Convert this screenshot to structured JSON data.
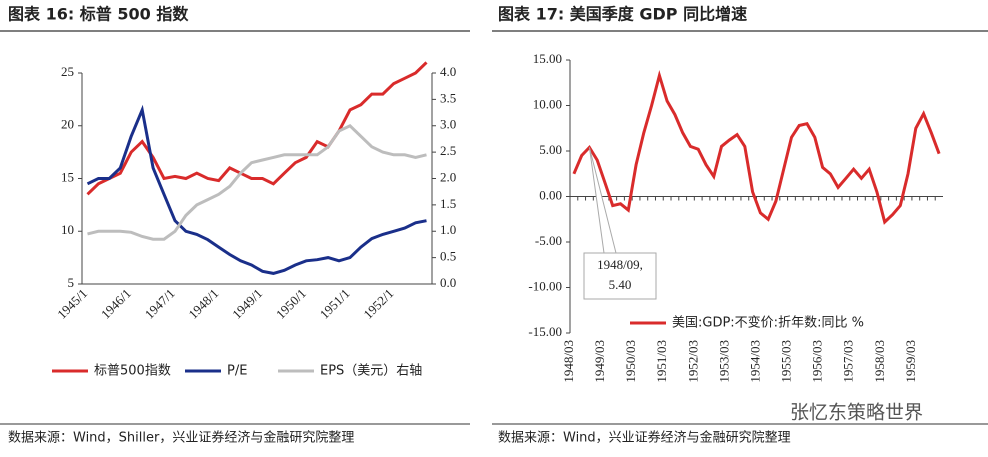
{
  "chart_data": [
    {
      "type": "line",
      "title": "图表 16:  标普 500 指数",
      "source": "数据来源：Wind，Shiller，兴业证券经济与金融研究院整理",
      "categories": [
        "1945/1",
        null,
        null,
        null,
        "1946/1",
        null,
        null,
        null,
        "1947/1",
        null,
        null,
        null,
        "1948/1",
        null,
        null,
        null,
        "1949/1",
        null,
        null,
        null,
        "1950/1",
        null,
        null,
        null,
        "1951/1",
        null,
        null,
        null,
        "1952/1",
        null,
        null,
        null
      ],
      "ylim": [
        5,
        25
      ],
      "yticks": [
        5,
        10,
        15,
        20,
        25
      ],
      "y2lim": [
        0,
        4
      ],
      "y2ticks": [
        {
          "value": 0,
          "label": "0.0"
        },
        {
          "value": 0.5,
          "label": "0.5"
        },
        {
          "value": 1,
          "label": "1.0"
        },
        {
          "value": 1.5,
          "label": "1.5"
        },
        {
          "value": 2,
          "label": "2.0"
        },
        {
          "value": 2.5,
          "label": "2.5"
        },
        {
          "value": 3,
          "label": "3.0"
        },
        {
          "value": 3.5,
          "label": "3.5"
        },
        {
          "value": 4,
          "label": "4.0"
        }
      ],
      "grid": false,
      "legend": "bottom",
      "series": [
        {
          "name": "标普500指数",
          "color": "#d92b2b",
          "values": [
            13.5,
            14.5,
            15,
            15.5,
            17.5,
            18.5,
            17,
            15,
            15.2,
            15,
            15.5,
            15,
            14.8,
            16,
            15.5,
            15,
            15,
            14.5,
            15.5,
            16.5,
            17,
            18.5,
            18,
            19.5,
            21.5,
            22,
            23,
            23,
            24,
            24.5,
            25,
            26
          ]
        },
        {
          "name": "P/E",
          "color": "#1a2f8a",
          "values": [
            14.5,
            15,
            15,
            16,
            19,
            21.5,
            16,
            13.5,
            11,
            10,
            9.7,
            9.2,
            8.5,
            7.8,
            7.2,
            6.8,
            6.2,
            6,
            6.3,
            6.8,
            7.2,
            7.3,
            7.5,
            7.2,
            7.5,
            8.5,
            9.3,
            9.7,
            10,
            10.3,
            10.8,
            11
          ]
        },
        {
          "name": "EPS（美元）右轴",
          "color": "#bdbdbd",
          "axis": "y2",
          "values": [
            0.95,
            1,
            1,
            1,
            0.98,
            0.9,
            0.85,
            0.85,
            1,
            1.3,
            1.5,
            1.6,
            1.7,
            1.85,
            2.1,
            2.3,
            2.35,
            2.4,
            2.45,
            2.45,
            2.45,
            2.45,
            2.6,
            2.9,
            3,
            2.8,
            2.6,
            2.5,
            2.45,
            2.45,
            2.4,
            2.45
          ]
        }
      ]
    },
    {
      "type": "line",
      "title": "图表 17:  美国季度 GDP 同比增速",
      "source": "数据来源：Wind，兴业证券经济与金融研究院整理",
      "categories": [
        "1948/03",
        null,
        null,
        null,
        "1949/03",
        null,
        null,
        null,
        "1950/03",
        null,
        null,
        null,
        "1951/03",
        null,
        null,
        null,
        "1952/03",
        null,
        null,
        null,
        "1953/03",
        null,
        null,
        null,
        "1954/03",
        null,
        null,
        null,
        "1955/03",
        null,
        null,
        null,
        "1956/03",
        null,
        null,
        null,
        "1957/03",
        null,
        null,
        null,
        "1958/03",
        null,
        null,
        null,
        "1959/03",
        null,
        null,
        null
      ],
      "ylim": [
        -15,
        15
      ],
      "yticks": [
        {
          "value": -15,
          "label": "-15.00"
        },
        {
          "value": -10,
          "label": "-10.00"
        },
        {
          "value": -5,
          "label": "-5.00"
        },
        {
          "value": 0,
          "label": "0.00"
        },
        {
          "value": 5,
          "label": "5.00"
        },
        {
          "value": 10,
          "label": "10.00"
        },
        {
          "value": 15,
          "label": "15.00"
        }
      ],
      "grid": false,
      "legend": "bottom",
      "annotation": [
        "1948/09,",
        "5.40"
      ],
      "series": [
        {
          "name": "美国:GDP:不变价:折年数:同比 %",
          "color": "#d92b2b",
          "values": [
            2.5,
            4.5,
            5.4,
            4,
            1.5,
            -1,
            -0.8,
            -1.5,
            3.5,
            7,
            10,
            13.3,
            10.5,
            9,
            7,
            5.5,
            5.2,
            3.5,
            2.2,
            5.5,
            6.2,
            6.8,
            5.5,
            0.5,
            -1.8,
            -2.5,
            -0.5,
            3,
            6.5,
            7.8,
            8,
            6.5,
            3.2,
            2.5,
            1,
            2,
            3,
            2,
            3,
            0.5,
            -2.8,
            -2,
            -1,
            2.5,
            7.5,
            9.1,
            7,
            4.7
          ]
        }
      ]
    }
  ],
  "watermark": "张忆东策略世界"
}
